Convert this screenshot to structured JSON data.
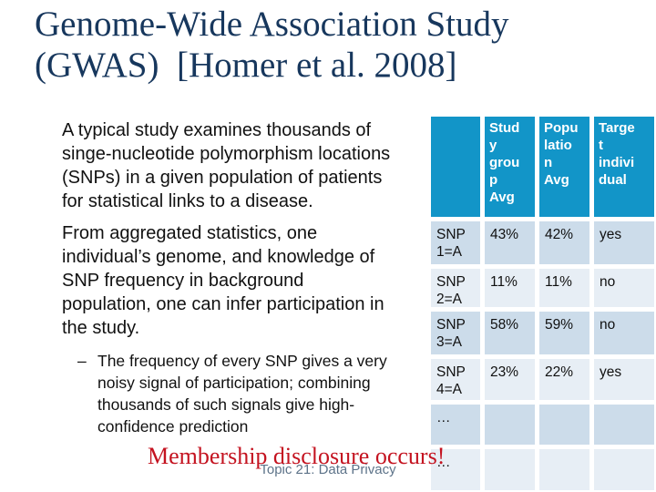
{
  "slide": {
    "title": {
      "line1": "Genome-Wide Association Study",
      "line2": "(GWAS)  [Homer et al. 2008]"
    },
    "bullets": [
      {
        "text": "A typical study examines thousands of\nsinge-nucleotide polymorphism locations\n(SNPs) in a given population of patients\nfor statistical links to a disease."
      },
      {
        "text": "From aggregated statistics, one\nindividual’s genome, and knowledge of\nSNP frequency in background\npopulation, one can infer participation in\nthe study."
      }
    ],
    "sub_bullet": {
      "text": "The frequency of every SNP gives a very\nnoisy signal of participation; combining\nthousands of such signals give high-\nconfidence prediction"
    },
    "warning": "Membership disclosure occurs!",
    "footer": "Topic 21: Data Privacy"
  },
  "table": {
    "headers": [
      "",
      "Stud\ny\ngrou\np\nAvg",
      "Popu\nlatio\nn\nAvg",
      "Targe\nt\nindivi\ndual"
    ],
    "headers_full": [
      "",
      "Study group Avg",
      "Population Avg",
      "Target individual"
    ],
    "rows": [
      [
        "SNP\n1=A",
        "43%",
        "42%",
        "yes"
      ],
      [
        "SNP\n2=A",
        "11%",
        "11%",
        "no"
      ],
      [
        "SNP\n3=A",
        "58%",
        "59%",
        "no"
      ],
      [
        "SNP\n4=A",
        "23%",
        "22%",
        "yes"
      ],
      [
        "…",
        "",
        "",
        ""
      ],
      [
        "…",
        "",
        "",
        ""
      ]
    ]
  },
  "colors": {
    "title_text": "#17375d",
    "bullet_dot": "#3a67ac",
    "table_header_bg": "#1295c8",
    "table_row_dark": "#ccdcea",
    "table_row_light": "#e7eef5",
    "warning_text": "#c41320",
    "footer_text": "#5d7389"
  }
}
